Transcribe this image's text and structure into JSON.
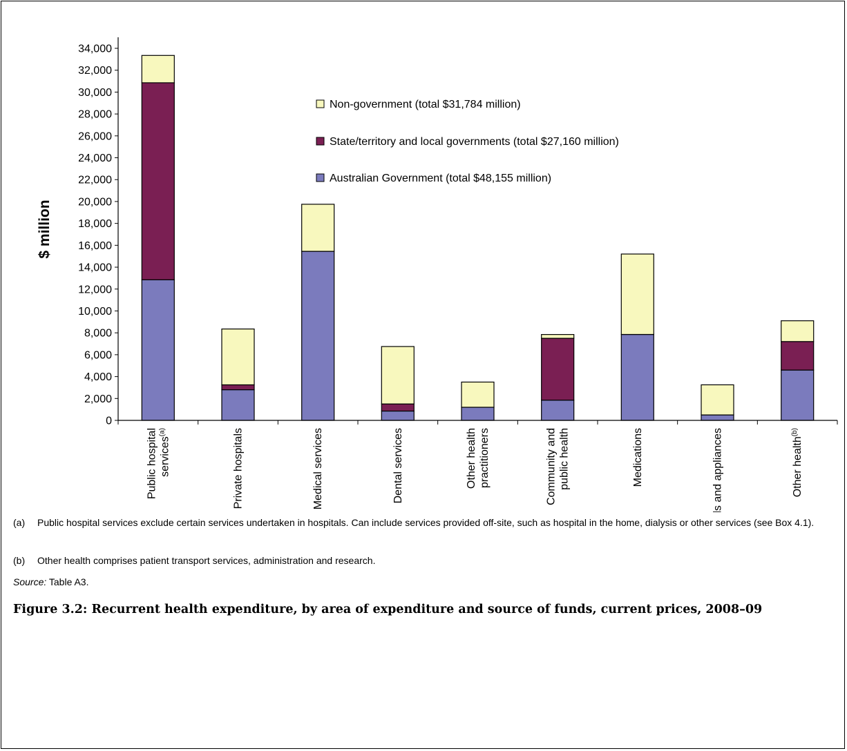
{
  "chart_data": {
    "type": "bar",
    "stacked": true,
    "ylabel": "$ million",
    "ylim": [
      0,
      34000
    ],
    "ytick_step": 2000,
    "grid": false,
    "legend_position": "top-center",
    "categories": [
      [
        "Public hospital",
        "services"
      ],
      [
        "Private hospitals"
      ],
      [
        "Medical services"
      ],
      [
        "Dental services"
      ],
      [
        "Other health",
        "practitioners"
      ],
      [
        "Community and",
        "public health"
      ],
      [
        "Medications"
      ],
      [
        "Aids and appliances"
      ],
      [
        "Other health"
      ]
    ],
    "category_superscripts": [
      "(a)",
      "",
      "",
      "",
      "",
      "",
      "",
      "",
      "(b)"
    ],
    "series": [
      {
        "name": "Australian Government (total $48,155 million)",
        "color": "#7b7bbd",
        "values": [
          12850,
          2800,
          15450,
          850,
          1200,
          1850,
          7850,
          500,
          4600
        ]
      },
      {
        "name": "State/territory and local governments (total $27,160 million)",
        "color": "#7a1f53",
        "values": [
          18000,
          450,
          0,
          650,
          0,
          5650,
          0,
          0,
          2600
        ]
      },
      {
        "name": "Non-government (total $31,784 million)",
        "color": "#f8f8be",
        "values": [
          2500,
          5100,
          4300,
          5250,
          2300,
          350,
          7350,
          2750,
          1900
        ]
      }
    ],
    "legend_order": [
      2,
      1,
      0
    ]
  },
  "notes": {
    "a_tag": "(a)",
    "a_text": "Public hospital services exclude certain services undertaken in hospitals. Can include services provided off-site, such as hospital in the home, dialysis or other services (see Box 4.1).",
    "b_tag": "(b)",
    "b_text": "Other health comprises patient transport services, administration and research.",
    "source_label": "Source:",
    "source_text": " Table A3."
  },
  "caption": "Figure 3.2: Recurrent health expenditure, by area of expenditure and source of funds, current prices, 2008–09"
}
